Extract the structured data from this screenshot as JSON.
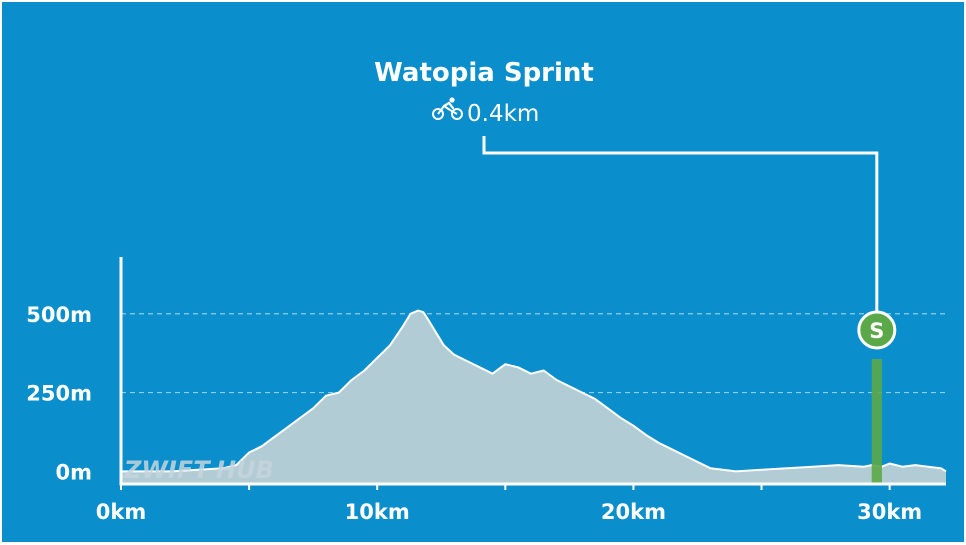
{
  "segment": {
    "name": "Watopia Sprint",
    "distance": "0.4km",
    "marker_letter": "S",
    "icon": "cyclist-icon"
  },
  "watermark": {
    "part1": "ZWIFT",
    "part2": "HUB"
  },
  "colors": {
    "background": "#0a8fcc",
    "area_fill": "#b2ccd6",
    "sprint_bar": "#5ba848",
    "marker": "#5ba848",
    "axis": "#ffffff"
  },
  "chart_data": {
    "type": "area",
    "title": "Watopia Sprint",
    "xlabel": "",
    "ylabel": "",
    "xlim": [
      0,
      32.2
    ],
    "ylim": [
      -40,
      680
    ],
    "x_ticks": [
      0,
      10,
      20,
      30
    ],
    "x_tick_labels": [
      "0km",
      "10km",
      "20km",
      "30km"
    ],
    "y_ticks": [
      0,
      250,
      500
    ],
    "y_tick_labels": [
      "0m",
      "250m",
      "500m"
    ],
    "grid": "horizontal dashed",
    "series": [
      {
        "x": [
          0,
          1,
          2,
          3,
          4,
          4.5,
          5,
          5.5,
          6,
          6.5,
          7,
          7.5,
          8,
          8.5,
          9,
          9.5,
          10,
          10.5,
          11,
          11.3,
          11.6,
          11.8,
          12,
          12.3,
          12.6,
          13,
          13.5,
          14,
          14.5,
          15,
          15.5,
          16,
          16.5,
          17,
          17.5,
          18,
          18.5,
          19,
          19.5,
          20,
          20.5,
          21,
          21.5,
          22,
          22.5,
          23,
          23.5,
          24,
          25,
          26,
          27,
          28,
          29,
          29.3,
          29.7,
          30,
          30.5,
          31,
          31.5,
          32,
          32.2
        ],
        "y": [
          0,
          0,
          0,
          5,
          10,
          20,
          60,
          80,
          110,
          140,
          170,
          200,
          240,
          250,
          290,
          320,
          360,
          400,
          460,
          500,
          510,
          505,
          480,
          440,
          400,
          370,
          350,
          330,
          310,
          340,
          330,
          310,
          320,
          290,
          270,
          250,
          230,
          200,
          170,
          145,
          115,
          90,
          70,
          50,
          30,
          10,
          5,
          0,
          5,
          10,
          15,
          20,
          15,
          20,
          15,
          25,
          15,
          20,
          15,
          10,
          0
        ]
      }
    ],
    "segments": [
      {
        "label": "S",
        "start_km": 29.3,
        "end_km": 29.7
      }
    ]
  }
}
